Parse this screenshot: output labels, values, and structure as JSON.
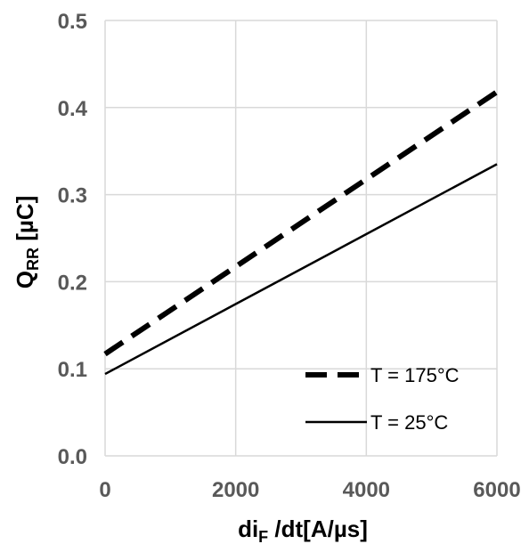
{
  "chart_data": {
    "type": "line",
    "x_ticks": [
      "0",
      "2000",
      "4000",
      "6000"
    ],
    "y_ticks": [
      "0.0",
      "0.1",
      "0.2",
      "0.3",
      "0.4",
      "0.5"
    ],
    "xlim": [
      0,
      6000
    ],
    "ylim": [
      0,
      0.5
    ],
    "grid": true,
    "legend_position": "bottom-right",
    "xlabel": {
      "main": "di",
      "sub": "F",
      "rest": " /dt[A/µs]"
    },
    "ylabel": {
      "main": "Q",
      "sub": "RR",
      "rest": "  [µC]"
    },
    "series": [
      {
        "name": "T = 175°C",
        "style": "dashed",
        "color": "#000000",
        "x": [
          0,
          6000
        ],
        "y": [
          0.117,
          0.418
        ]
      },
      {
        "name": "T = 25°C",
        "style": "solid",
        "color": "#000000",
        "x": [
          0,
          6000
        ],
        "y": [
          0.094,
          0.335
        ]
      }
    ]
  }
}
